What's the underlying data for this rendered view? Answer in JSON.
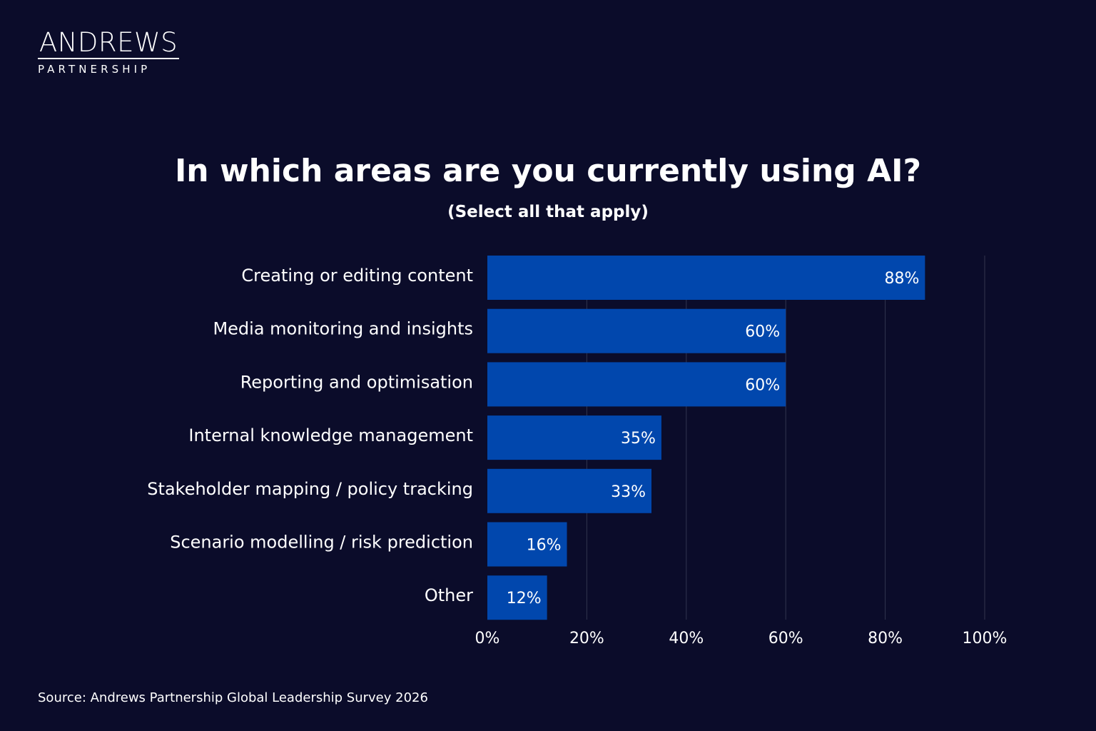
{
  "brand": {
    "logo_main": "ANDREWS",
    "logo_sub": "PARTNERSHIP"
  },
  "colors": {
    "background": "#0b0c2a",
    "bar": "#0147ad",
    "gridline": "#33344f",
    "text": "#ffffff"
  },
  "chart_data": {
    "type": "bar",
    "orientation": "horizontal",
    "title": "In which areas are you currently using AI?",
    "subtitle": "(Select all that apply)",
    "categories": [
      "Creating or editing content",
      "Media monitoring and insights",
      "Reporting and optimisation",
      "Internal knowledge management",
      "Stakeholder mapping / policy tracking",
      "Scenario modelling / risk prediction",
      "Other"
    ],
    "values": [
      88,
      60,
      60,
      35,
      33,
      16,
      12
    ],
    "value_labels": [
      "88%",
      "60%",
      "60%",
      "35%",
      "33%",
      "16%",
      "12%"
    ],
    "xlim": [
      0,
      100
    ],
    "xticks": [
      0,
      20,
      40,
      60,
      80,
      100
    ],
    "xtick_labels": [
      "0%",
      "20%",
      "40%",
      "60%",
      "80%",
      "100%"
    ],
    "grid": true,
    "xlabel": "",
    "ylabel": ""
  },
  "footer": {
    "source": "Source: Andrews Partnership Global Leadership Survey 2026"
  }
}
